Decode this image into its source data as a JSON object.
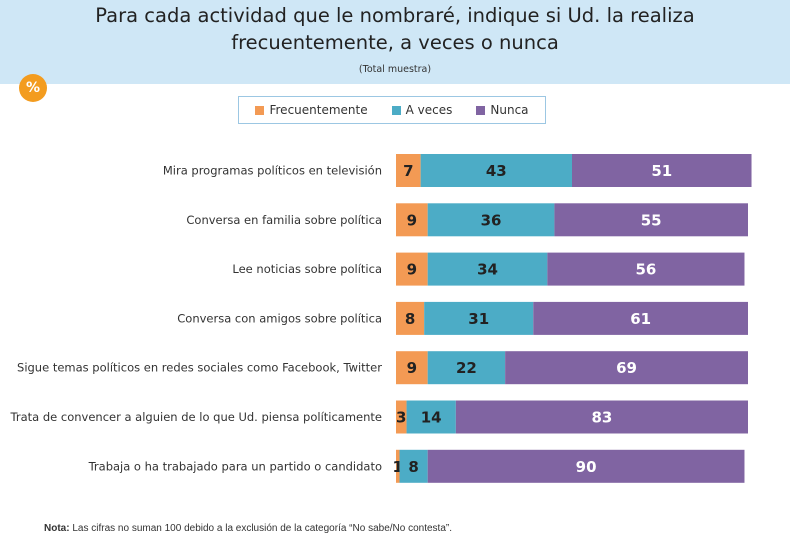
{
  "header": {
    "title": "Para cada actividad que le nombraré, indique si Ud. la realiza frecuentemente, a veces o nunca",
    "subtitle": "(Total muestra)",
    "badge": "%"
  },
  "footnote": {
    "label": "Nota:",
    "text": " Las cifras no suman 100 debido a la exclusión de la categoría “No sabe/No contesta”."
  },
  "colors": {
    "frecuentemente": "#f39a54",
    "a_veces": "#4cacc6",
    "nunca": "#8064a2"
  },
  "chart_data": {
    "type": "bar",
    "orientation": "horizontal",
    "stacked": true,
    "title": "Para cada actividad que le nombraré, indique si Ud. la realiza frecuentemente, a veces o nunca",
    "subtitle": "(Total muestra)",
    "legend_position": "top",
    "grid": false,
    "xlim": [
      0,
      100
    ],
    "categories": [
      "Mira programas políticos en televisión",
      "Conversa en familia sobre política",
      "Lee noticias sobre política",
      "Conversa con amigos sobre política",
      "Sigue temas políticos en redes sociales como Facebook, Twitter",
      "Trata de convencer a alguien de lo que Ud. piensa políticamente",
      "Trabaja o ha trabajado para un partido o candidato"
    ],
    "series": [
      {
        "name": "Frecuentemente",
        "color": "#f39a54",
        "values": [
          7,
          9,
          9,
          8,
          9,
          3,
          1
        ]
      },
      {
        "name": "A veces",
        "color": "#4cacc6",
        "values": [
          43,
          36,
          34,
          31,
          22,
          14,
          8
        ]
      },
      {
        "name": "Nunca",
        "color": "#8064a2",
        "values": [
          51,
          55,
          56,
          61,
          69,
          83,
          90
        ]
      }
    ]
  }
}
